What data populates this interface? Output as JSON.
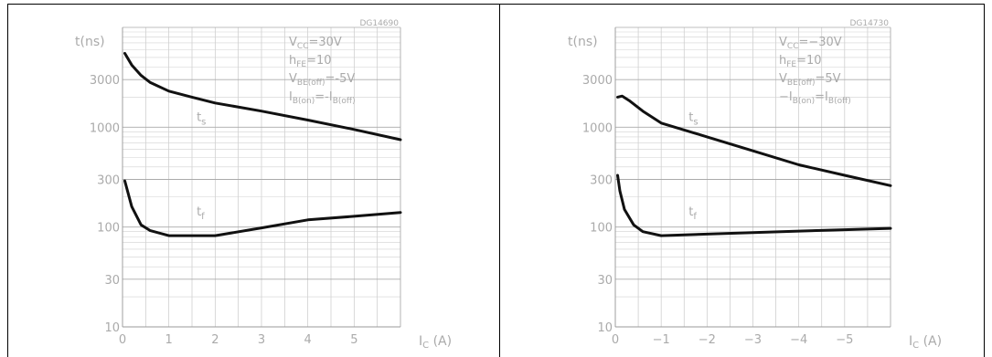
{
  "chart_data": [
    {
      "type": "line",
      "id_code": "DG14690",
      "ylabel": "t(ns)",
      "xlabel_main": "I",
      "xlabel_sub": "C",
      "xlabel_unit": "(A)",
      "y_scale": "log",
      "ylim": [
        10,
        10000
      ],
      "xlim": [
        0,
        6
      ],
      "grid": true,
      "x_ticks": [
        0,
        1,
        2,
        3,
        4,
        5
      ],
      "x_tick_labels": [
        "0",
        "1",
        "2",
        "3",
        "4",
        "5"
      ],
      "y_ticks": [
        10,
        30,
        100,
        300,
        1000,
        3000
      ],
      "y_tick_labels": [
        "10",
        "30",
        "100",
        "300",
        "1000",
        "3000"
      ],
      "conditions": [
        {
          "main": "V",
          "sub": "CC",
          "rest": "=30V"
        },
        {
          "main": "h",
          "sub": "FE",
          "rest": "=10"
        },
        {
          "main": "V",
          "sub": "BE(off)",
          "rest": "=-5V"
        },
        {
          "main": "I",
          "sub": "B(on)",
          "rest": "=-I",
          "sub2": "B(off)"
        }
      ],
      "series": [
        {
          "name": "t",
          "name_sub": "s",
          "label_at": [
            1.6,
            1150
          ],
          "x": [
            0.05,
            0.2,
            0.4,
            0.6,
            1.0,
            1.5,
            2.0,
            3.0,
            4.0,
            5.0,
            6.0
          ],
          "y": [
            5500,
            4200,
            3300,
            2800,
            2300,
            2000,
            1750,
            1450,
            1180,
            950,
            750
          ]
        },
        {
          "name": "t",
          "name_sub": "f",
          "label_at": [
            1.6,
            130
          ],
          "x": [
            0.05,
            0.2,
            0.4,
            0.6,
            1.0,
            1.5,
            2.0,
            3.0,
            4.0,
            5.0,
            6.0
          ],
          "y": [
            290,
            160,
            105,
            92,
            82,
            82,
            82,
            98,
            118,
            128,
            140
          ]
        }
      ]
    },
    {
      "type": "line",
      "id_code": "DG14730",
      "ylabel": "t(ns)",
      "xlabel_main": "I",
      "xlabel_sub": "C",
      "xlabel_unit": "(A)",
      "y_scale": "log",
      "ylim": [
        10,
        10000
      ],
      "xlim": [
        0,
        -6
      ],
      "grid": true,
      "x_ticks": [
        0,
        -1,
        -2,
        -3,
        -4,
        -5
      ],
      "x_tick_labels": [
        "0",
        "−1",
        "−2",
        "−3",
        "−4",
        "−5"
      ],
      "y_ticks": [
        10,
        30,
        100,
        300,
        1000,
        3000
      ],
      "y_tick_labels": [
        "10",
        "30",
        "100",
        "300",
        "1000",
        "3000"
      ],
      "conditions": [
        {
          "main": "V",
          "sub": "CC",
          "rest": "=−30V"
        },
        {
          "main": "h",
          "sub": "FE",
          "rest": "=10"
        },
        {
          "main": "V",
          "sub": "BE(off)",
          "rest": "=5V"
        },
        {
          "main": "−I",
          "sub": "B(on)",
          "rest": "=I",
          "sub2": "B(off)"
        }
      ],
      "series": [
        {
          "name": "t",
          "name_sub": "s",
          "label_at": [
            -1.6,
            1150
          ],
          "x": [
            -0.05,
            -0.15,
            -0.3,
            -0.6,
            -1.0,
            -2.0,
            -3.0,
            -4.0,
            -5.0,
            -6.0
          ],
          "y": [
            2000,
            2050,
            1850,
            1450,
            1100,
            800,
            580,
            420,
            330,
            260
          ]
        },
        {
          "name": "t",
          "name_sub": "f",
          "label_at": [
            -1.6,
            130
          ],
          "x": [
            -0.05,
            -0.1,
            -0.2,
            -0.4,
            -0.6,
            -1.0,
            -2.0,
            -3.0,
            -4.0,
            -5.0,
            -6.0
          ],
          "y": [
            330,
            230,
            150,
            105,
            90,
            82,
            85,
            88,
            91,
            94,
            97
          ]
        }
      ]
    }
  ]
}
